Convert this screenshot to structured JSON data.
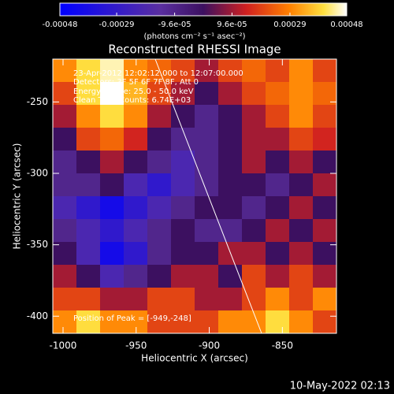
{
  "chart_data": {
    "type": "heatmap",
    "title": "Reconstructed RHESSI Image",
    "x_label": "Heliocentric X (arcsec)",
    "y_label": "Heliocentric Y (arcsec)",
    "xlim": [
      -1007,
      -813
    ],
    "ylim": [
      -412,
      -220
    ],
    "xticks": [
      -1000,
      -950,
      -900,
      -850
    ],
    "yticks": [
      -400,
      -350,
      -300,
      -250
    ],
    "colorbar": {
      "label": "(photons cm⁻² s⁻¹ asec⁻²)",
      "lim": [
        -0.00048,
        0.00048
      ],
      "ticks": [
        -0.00048,
        -0.00029,
        {
          "value": -9.6e-05,
          "label": "-9.6e-05"
        },
        {
          "value": 9.6e-05,
          "label": "9.6e-05"
        },
        0.00029,
        0.00048
      ]
    },
    "annotations": [
      "23-Apr-2012 12:02:12.000 to 12:07:00.000",
      "Detectors: 3F 5F 6F 7F 8F, Att 0",
      "Energy Range: 25.0 - 50.0 keV",
      "Clean    Total Counts: 6.74E+03",
      "Position of Peak = [-949,-248]"
    ],
    "timestamp": "10-May-2022 02:13",
    "values": [
      [
        0.0003,
        0.0004,
        0.00045,
        0.0003,
        0.00025,
        0.0002,
        0.0001,
        0.0002,
        0.00025,
        0.0002,
        0.0003,
        0.0002
      ],
      [
        0.0002,
        0.0004,
        0.00048,
        0.00035,
        0.0002,
        0.0001,
        0,
        0.0001,
        0.0002,
        0.00025,
        0.0003,
        0.00025
      ],
      [
        0.0001,
        0.0003,
        0.0004,
        0.0003,
        0.0001,
        0,
        -0.0001,
        0,
        0.0001,
        0.0002,
        0.0003,
        0.0002
      ],
      [
        0,
        0.0002,
        0.00025,
        0.00015,
        0,
        -0.0001,
        -0.0001,
        0,
        0.0001,
        0.0001,
        0.0002,
        0.00015
      ],
      [
        -0.0001,
        0,
        0.0001,
        0,
        -0.0001,
        -0.0002,
        -0.0001,
        0,
        0.0001,
        0,
        0.0001,
        0
      ],
      [
        -0.0001,
        -0.0001,
        0,
        -0.0002,
        -0.0003,
        -0.0002,
        -0.0001,
        0,
        0,
        -0.0001,
        0,
        0.0001
      ],
      [
        -0.0002,
        -0.0003,
        -0.0004,
        -0.0003,
        -0.0002,
        -0.0001,
        0,
        0,
        -0.0001,
        0,
        0.0001,
        0
      ],
      [
        -0.0001,
        -0.0002,
        -0.0003,
        -0.0002,
        -0.0001,
        0,
        -0.0001,
        -0.0001,
        0,
        0.0001,
        0,
        0.0001
      ],
      [
        0,
        -0.0002,
        -0.0004,
        -0.0003,
        -0.0001,
        0,
        0,
        0.0001,
        0.0001,
        0,
        0.0001,
        0
      ],
      [
        0.0001,
        0,
        -0.0002,
        -0.0001,
        0,
        0.0001,
        0.0001,
        0,
        0.0002,
        0.0001,
        0.0002,
        0.0001
      ],
      [
        0.0002,
        0.0002,
        0.0001,
        0.0001,
        0.0002,
        0.0002,
        0.0001,
        0.0001,
        0.0002,
        0.0003,
        0.0002,
        0.0003
      ],
      [
        0.0003,
        0.0004,
        0.0003,
        0.0003,
        0.0002,
        0.0002,
        0.0002,
        0.0003,
        0.0003,
        0.0004,
        0.0003,
        0.0002
      ]
    ]
  }
}
